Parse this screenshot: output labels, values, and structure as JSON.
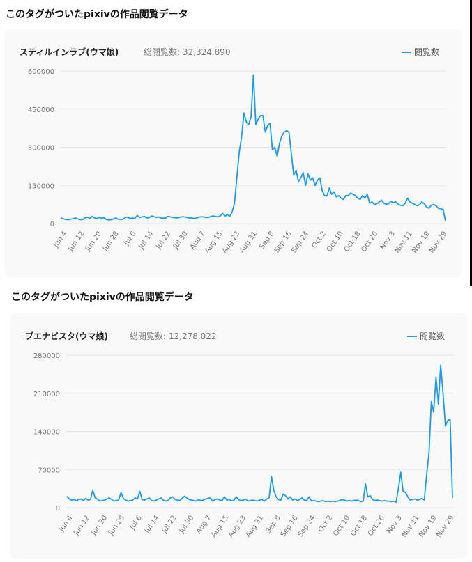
{
  "sections": [
    {
      "heading": "このタグがついたpixivの作品閲覧データ",
      "chart_name": "スティルインラブ(ウマ娘)",
      "total_label": "総閲覧数: 32,324,890",
      "legend_label": "閲覧数"
    },
    {
      "heading": "このタグがついたpixivの作品閲覧データ",
      "chart_name": "ブエナビスタ(ウマ娘)",
      "total_label": "総閲覧数: 12,278,022",
      "legend_label": "閲覧数"
    }
  ],
  "chart_data": [
    {
      "type": "line",
      "title": "スティルインラブ(ウマ娘)",
      "series": [
        {
          "name": "閲覧数",
          "color": "#1a9af0"
        }
      ],
      "ylim": [
        0,
        600000
      ],
      "yticks": [
        "600000",
        "450000",
        "300000",
        "150000",
        "0"
      ],
      "ytick_values": [
        600000,
        450000,
        300000,
        150000,
        0
      ],
      "xticks": [
        "Jun 4",
        "Jun 12",
        "Jun 20",
        "Jun 28",
        "Jul 6",
        "Jul 14",
        "Jul 22",
        "Jul 30",
        "Aug 7",
        "Aug 15",
        "Aug 23",
        "Aug 31",
        "Sep 8",
        "Sep 16",
        "Sep 24",
        "Oct 2",
        "Oct 10",
        "Oct 18",
        "Oct 26",
        "Nov 3",
        "Nov 11",
        "Nov 19",
        "Nov 29"
      ],
      "grid": true,
      "legend_position": "top-right",
      "values": [
        22000,
        18000,
        16000,
        15000,
        17000,
        20000,
        22000,
        18000,
        15000,
        16000,
        22000,
        25000,
        20000,
        28000,
        22000,
        20000,
        24000,
        21000,
        23000,
        16000,
        14000,
        15000,
        18000,
        22000,
        17000,
        16000,
        17000,
        24000,
        25000,
        20000,
        22000,
        20000,
        32000,
        24000,
        26000,
        28000,
        22000,
        23000,
        30000,
        28000,
        24000,
        26000,
        22000,
        21000,
        22000,
        28000,
        26000,
        24000,
        23000,
        22000,
        25000,
        27000,
        26000,
        24000,
        22000,
        22000,
        20000,
        22000,
        25000,
        27000,
        26000,
        24000,
        24000,
        28000,
        30000,
        28000,
        26000,
        30000,
        40000,
        30000,
        35000,
        28000,
        45000,
        80000,
        180000,
        280000,
        340000,
        435000,
        400000,
        390000,
        420000,
        585000,
        390000,
        410000,
        425000,
        425000,
        360000,
        385000,
        395000,
        290000,
        300000,
        265000,
        315000,
        345000,
        360000,
        365000,
        360000,
        275000,
        190000,
        210000,
        165000,
        180000,
        200000,
        150000,
        195000,
        170000,
        180000,
        150000,
        170000,
        180000,
        130000,
        110000,
        108000,
        140000,
        115000,
        125000,
        105000,
        110000,
        100000,
        95000,
        110000,
        110000,
        120000,
        115000,
        110000,
        100000,
        95000,
        110000,
        100000,
        115000,
        80000,
        85000,
        75000,
        78000,
        85000,
        92000,
        80000,
        76000,
        78000,
        88000,
        82000,
        86000,
        76000,
        72000,
        70000,
        80000,
        100000,
        85000,
        80000,
        75000,
        70000,
        74000,
        85000,
        78000,
        65000,
        60000,
        72000,
        75000,
        70000,
        60000,
        58000,
        55000,
        10000
      ]
    },
    {
      "type": "line",
      "title": "ブエナビスタ(ウマ娘)",
      "series": [
        {
          "name": "閲覧数",
          "color": "#1a9af0"
        }
      ],
      "ylim": [
        0,
        280000
      ],
      "yticks": [
        "280000",
        "210000",
        "140000",
        "70000",
        "0"
      ],
      "ytick_values": [
        280000,
        210000,
        140000,
        70000,
        0
      ],
      "xticks": [
        "Jun 4",
        "Jun 12",
        "Jun 20",
        "Jun 28",
        "Jul 6",
        "Jul 14",
        "Jul 22",
        "Jul 30",
        "Aug 7",
        "Aug 15",
        "Aug 23",
        "Aug 31",
        "Sep 8",
        "Sep 16",
        "Sep 24",
        "Oct 2",
        "Oct 10",
        "Oct 18",
        "Oct 26",
        "Nov 3",
        "Nov 11",
        "Nov 19",
        "Nov 29"
      ],
      "grid": true,
      "legend_position": "top-right",
      "values": [
        21000,
        16000,
        14000,
        15000,
        13000,
        15000,
        16000,
        13000,
        17000,
        14000,
        15000,
        32000,
        18000,
        16000,
        12000,
        13000,
        14000,
        16000,
        18000,
        15000,
        12000,
        13000,
        14000,
        28000,
        17000,
        14000,
        12000,
        13000,
        14000,
        18000,
        16000,
        30000,
        15000,
        14000,
        16000,
        18000,
        13000,
        12000,
        14000,
        16000,
        18000,
        14000,
        12000,
        13000,
        18000,
        20000,
        15000,
        14000,
        13000,
        17000,
        21000,
        18000,
        15000,
        14000,
        13000,
        12000,
        15000,
        13000,
        14000,
        16000,
        17000,
        18000,
        12000,
        15000,
        16000,
        14000,
        13000,
        20000,
        14000,
        15000,
        13000,
        13000,
        20000,
        15000,
        13000,
        14000,
        16000,
        12000,
        13000,
        14000,
        13000,
        12000,
        14000,
        15000,
        12000,
        16000,
        18000,
        57000,
        32000,
        20000,
        15000,
        14000,
        25000,
        22000,
        16000,
        20000,
        14000,
        16000,
        13000,
        15000,
        18000,
        14000,
        13000,
        20000,
        12000,
        13000,
        12000,
        11000,
        12000,
        13000,
        11000,
        12000,
        11000,
        12000,
        11000,
        12000,
        13000,
        15000,
        14000,
        12000,
        13000,
        12000,
        13000,
        14000,
        13000,
        11000,
        12000,
        44000,
        20000,
        22000,
        15000,
        13000,
        14000,
        13000,
        12000,
        13000,
        12000,
        12000,
        11000,
        12000,
        10000,
        35000,
        65000,
        30000,
        28000,
        20000,
        14000,
        15000,
        16000,
        14000,
        15000,
        17000,
        14000,
        60000,
        100000,
        195000,
        175000,
        240000,
        190000,
        262000,
        210000,
        150000,
        160000,
        162000,
        18000
      ]
    }
  ]
}
